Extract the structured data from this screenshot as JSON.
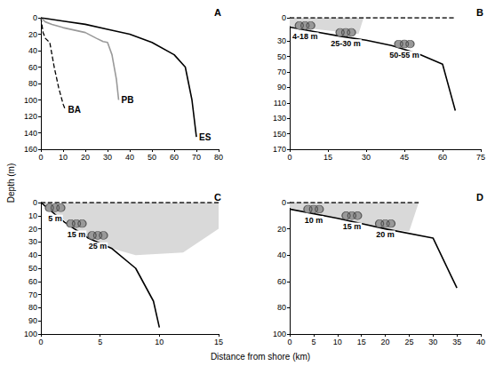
{
  "x_label": "Distance from shore (km)",
  "y_label": "Depth (m)",
  "chart_data": [
    {
      "title": "A",
      "type": "line",
      "xlim": [
        0,
        80
      ],
      "xticks": [
        0,
        10,
        20,
        30,
        40,
        50,
        60,
        70,
        80
      ],
      "ylim": [
        0,
        160
      ],
      "yticks": [
        0,
        20,
        40,
        60,
        80,
        100,
        120,
        140,
        160
      ],
      "series": [
        {
          "name": "BA",
          "color": "#000000",
          "line_style": "dashed",
          "x": [
            0,
            1,
            2,
            4,
            6,
            8,
            10,
            11
          ],
          "values": [
            0,
            18,
            25,
            30,
            60,
            85,
            105,
            112
          ]
        },
        {
          "name": "PB",
          "color": "#999999",
          "line_style": "solid",
          "x": [
            0,
            2,
            5,
            10,
            15,
            20,
            25,
            28,
            30,
            32,
            34,
            35
          ],
          "values": [
            0,
            5,
            8,
            12,
            15,
            18,
            25,
            29,
            30,
            45,
            75,
            100
          ]
        },
        {
          "name": "ES",
          "color": "#000000",
          "line_style": "solid",
          "x": [
            0,
            10,
            20,
            30,
            40,
            50,
            60,
            65,
            68,
            70
          ],
          "values": [
            0,
            4,
            8,
            14,
            20,
            30,
            45,
            60,
            100,
            145
          ]
        }
      ]
    },
    {
      "title": "B",
      "type": "line",
      "xlim": [
        0,
        75
      ],
      "xticks": [
        0,
        15,
        30,
        45,
        60,
        75
      ],
      "ylim": [
        0,
        170
      ],
      "yticks": [
        0,
        30,
        50,
        70,
        90,
        110,
        130,
        150,
        170
      ],
      "series": [
        {
          "type": "area",
          "color": "#d9d9d9",
          "x": [
            0,
            27,
            29
          ],
          "values": [
            11,
            21,
            0
          ]
        },
        {
          "color": "#000000",
          "line_style": "dashed",
          "x": [
            0,
            65
          ],
          "values": [
            0,
            0
          ]
        },
        {
          "color": "#000000",
          "line_style": "solid",
          "x": [
            0,
            10,
            20,
            30,
            40,
            50,
            60,
            65
          ],
          "values": [
            12,
            18,
            24,
            29,
            36,
            46,
            60,
            120
          ]
        }
      ],
      "annotations": [
        {
          "text": "4-18 m",
          "x": 6,
          "y": 10
        },
        {
          "text": "25-30 m",
          "x": 22,
          "y": 19
        },
        {
          "text": "50-55 m",
          "x": 45,
          "y": 34
        }
      ]
    },
    {
      "title": "C",
      "type": "line",
      "xlim": [
        0,
        15
      ],
      "xticks": [
        0,
        5,
        10,
        15
      ],
      "ylim": [
        0,
        100
      ],
      "yticks": [
        0,
        10,
        20,
        30,
        40,
        50,
        60,
        70,
        80,
        90,
        100
      ],
      "series": [
        {
          "type": "area",
          "color": "#d9d9d9",
          "x": [
            0,
            4,
            6,
            8,
            12,
            15
          ],
          "values": [
            0,
            27,
            35,
            40,
            38,
            20
          ]
        },
        {
          "color": "#000000",
          "line_style": "dashed",
          "x": [
            0,
            15
          ],
          "values": [
            0,
            0
          ]
        },
        {
          "color": "#000000",
          "line_style": "solid",
          "x": [
            0,
            2,
            4,
            6,
            8,
            9.5,
            10
          ],
          "values": [
            0,
            15,
            27,
            35,
            50,
            75,
            95
          ]
        }
      ],
      "annotations": [
        {
          "text": "5 m",
          "x": 1.2,
          "y": 4
        },
        {
          "text": "15 m",
          "x": 3,
          "y": 16
        },
        {
          "text": "25 m",
          "x": 4.8,
          "y": 25
        }
      ]
    },
    {
      "title": "D",
      "type": "line",
      "xlim": [
        0,
        40
      ],
      "xticks": [
        0,
        5,
        10,
        15,
        20,
        25,
        30,
        35,
        40
      ],
      "ylim": [
        0,
        100
      ],
      "yticks": [
        0,
        20,
        40,
        60,
        80,
        100
      ],
      "series": [
        {
          "type": "area",
          "color": "#d9d9d9",
          "x": [
            0,
            20,
            25,
            27
          ],
          "values": [
            4,
            20,
            22,
            0
          ]
        },
        {
          "color": "#000000",
          "line_style": "dashed",
          "x": [
            0,
            27
          ],
          "values": [
            0,
            0
          ]
        },
        {
          "color": "#000000",
          "line_style": "solid",
          "x": [
            0,
            10,
            20,
            30,
            35
          ],
          "values": [
            5,
            12,
            20,
            27,
            65
          ]
        }
      ],
      "annotations": [
        {
          "text": "10 m",
          "x": 5,
          "y": 5
        },
        {
          "text": "15 m",
          "x": 13,
          "y": 10
        },
        {
          "text": "20 m",
          "x": 20,
          "y": 16
        }
      ]
    }
  ]
}
